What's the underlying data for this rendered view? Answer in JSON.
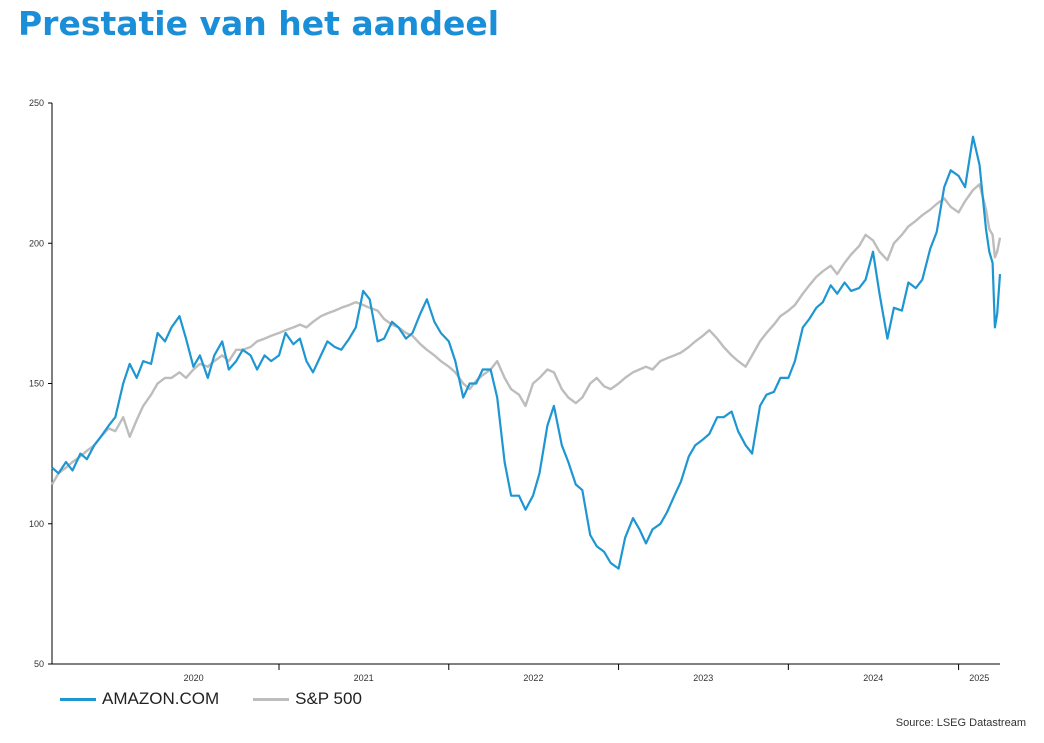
{
  "page": {
    "title": "Prestatie van het aandeel",
    "source": "Source: LSEG Datastream"
  },
  "colors": {
    "title": "#1a8fd8",
    "amazon": "#1e96d2",
    "sp500": "#bdbdbd",
    "axis": "#000000"
  },
  "chart_data": {
    "type": "line",
    "title": "Prestatie van het aandeel",
    "xlabel": "",
    "ylabel": "",
    "ylim": [
      50,
      250
    ],
    "xlim": [
      "2019-09-01",
      "2025-03-31"
    ],
    "yticks": [
      50,
      100,
      150,
      200,
      250
    ],
    "xtick_labels": [
      "2020",
      "2021",
      "2022",
      "2023",
      "2024",
      "2025"
    ],
    "grid": false,
    "legend": "bottom-left",
    "series": [
      {
        "name": "AMAZON.COM",
        "color": "#1e96d2",
        "points": [
          [
            "2019-09-01",
            120
          ],
          [
            "2019-09-15",
            118
          ],
          [
            "2019-10-01",
            122
          ],
          [
            "2019-10-15",
            119
          ],
          [
            "2019-11-01",
            125
          ],
          [
            "2019-11-15",
            123
          ],
          [
            "2019-12-01",
            128
          ],
          [
            "2019-12-15",
            131
          ],
          [
            "2020-01-01",
            135
          ],
          [
            "2020-01-15",
            138
          ],
          [
            "2020-02-01",
            150
          ],
          [
            "2020-02-15",
            157
          ],
          [
            "2020-03-01",
            152
          ],
          [
            "2020-03-15",
            158
          ],
          [
            "2020-04-01",
            157
          ],
          [
            "2020-04-15",
            168
          ],
          [
            "2020-05-01",
            165
          ],
          [
            "2020-05-15",
            170
          ],
          [
            "2020-06-01",
            174
          ],
          [
            "2020-06-15",
            166
          ],
          [
            "2020-07-01",
            156
          ],
          [
            "2020-07-15",
            160
          ],
          [
            "2020-08-01",
            152
          ],
          [
            "2020-08-15",
            160
          ],
          [
            "2020-09-01",
            165
          ],
          [
            "2020-09-15",
            155
          ],
          [
            "2020-10-01",
            158
          ],
          [
            "2020-10-15",
            162
          ],
          [
            "2020-11-01",
            160
          ],
          [
            "2020-11-15",
            155
          ],
          [
            "2020-12-01",
            160
          ],
          [
            "2020-12-15",
            158
          ],
          [
            "2021-01-01",
            160
          ],
          [
            "2021-01-15",
            168
          ],
          [
            "2021-02-01",
            164
          ],
          [
            "2021-02-15",
            166
          ],
          [
            "2021-03-01",
            158
          ],
          [
            "2021-03-15",
            154
          ],
          [
            "2021-04-01",
            160
          ],
          [
            "2021-04-15",
            165
          ],
          [
            "2021-05-01",
            163
          ],
          [
            "2021-05-15",
            162
          ],
          [
            "2021-06-01",
            166
          ],
          [
            "2021-06-15",
            170
          ],
          [
            "2021-07-01",
            183
          ],
          [
            "2021-07-15",
            180
          ],
          [
            "2021-08-01",
            165
          ],
          [
            "2021-08-15",
            166
          ],
          [
            "2021-09-01",
            172
          ],
          [
            "2021-09-15",
            170
          ],
          [
            "2021-10-01",
            166
          ],
          [
            "2021-10-15",
            168
          ],
          [
            "2021-11-01",
            175
          ],
          [
            "2021-11-15",
            180
          ],
          [
            "2021-12-01",
            172
          ],
          [
            "2021-12-15",
            168
          ],
          [
            "2022-01-01",
            165
          ],
          [
            "2022-01-15",
            158
          ],
          [
            "2022-02-01",
            145
          ],
          [
            "2022-02-15",
            150
          ],
          [
            "2022-03-01",
            150
          ],
          [
            "2022-03-15",
            155
          ],
          [
            "2022-04-01",
            155
          ],
          [
            "2022-04-15",
            145
          ],
          [
            "2022-05-01",
            122
          ],
          [
            "2022-05-15",
            110
          ],
          [
            "2022-06-01",
            110
          ],
          [
            "2022-06-15",
            105
          ],
          [
            "2022-07-01",
            110
          ],
          [
            "2022-07-15",
            118
          ],
          [
            "2022-08-01",
            135
          ],
          [
            "2022-08-15",
            142
          ],
          [
            "2022-09-01",
            128
          ],
          [
            "2022-09-15",
            122
          ],
          [
            "2022-10-01",
            114
          ],
          [
            "2022-10-15",
            112
          ],
          [
            "2022-11-01",
            96
          ],
          [
            "2022-11-15",
            92
          ],
          [
            "2022-12-01",
            90
          ],
          [
            "2022-12-15",
            86
          ],
          [
            "2023-01-01",
            84
          ],
          [
            "2023-01-15",
            95
          ],
          [
            "2023-02-01",
            102
          ],
          [
            "2023-02-15",
            98
          ],
          [
            "2023-03-01",
            93
          ],
          [
            "2023-03-15",
            98
          ],
          [
            "2023-04-01",
            100
          ],
          [
            "2023-04-15",
            104
          ],
          [
            "2023-05-01",
            110
          ],
          [
            "2023-05-15",
            115
          ],
          [
            "2023-06-01",
            124
          ],
          [
            "2023-06-15",
            128
          ],
          [
            "2023-07-01",
            130
          ],
          [
            "2023-07-15",
            132
          ],
          [
            "2023-08-01",
            138
          ],
          [
            "2023-08-15",
            138
          ],
          [
            "2023-09-01",
            140
          ],
          [
            "2023-09-15",
            133
          ],
          [
            "2023-10-01",
            128
          ],
          [
            "2023-10-15",
            125
          ],
          [
            "2023-11-01",
            142
          ],
          [
            "2023-11-15",
            146
          ],
          [
            "2023-12-01",
            147
          ],
          [
            "2023-12-15",
            152
          ],
          [
            "2024-01-01",
            152
          ],
          [
            "2024-01-15",
            158
          ],
          [
            "2024-02-01",
            170
          ],
          [
            "2024-02-15",
            173
          ],
          [
            "2024-03-01",
            177
          ],
          [
            "2024-03-15",
            179
          ],
          [
            "2024-04-01",
            185
          ],
          [
            "2024-04-15",
            182
          ],
          [
            "2024-05-01",
            186
          ],
          [
            "2024-05-15",
            183
          ],
          [
            "2024-06-01",
            184
          ],
          [
            "2024-06-15",
            187
          ],
          [
            "2024-07-01",
            197
          ],
          [
            "2024-07-15",
            182
          ],
          [
            "2024-08-01",
            166
          ],
          [
            "2024-08-15",
            177
          ],
          [
            "2024-09-01",
            176
          ],
          [
            "2024-09-15",
            186
          ],
          [
            "2024-10-01",
            184
          ],
          [
            "2024-10-15",
            187
          ],
          [
            "2024-11-01",
            198
          ],
          [
            "2024-11-15",
            204
          ],
          [
            "2024-12-01",
            220
          ],
          [
            "2024-12-15",
            226
          ],
          [
            "2025-01-01",
            224
          ],
          [
            "2025-01-15",
            220
          ],
          [
            "2025-02-01",
            238
          ],
          [
            "2025-02-15",
            228
          ],
          [
            "2025-03-01",
            205
          ],
          [
            "2025-03-08",
            197
          ],
          [
            "2025-03-15",
            193
          ],
          [
            "2025-03-20",
            170
          ],
          [
            "2025-03-25",
            175
          ],
          [
            "2025-03-31",
            189
          ]
        ]
      },
      {
        "name": "S&P 500",
        "color": "#bdbdbd",
        "points": [
          [
            "2019-09-01",
            114
          ],
          [
            "2019-09-15",
            118
          ],
          [
            "2019-10-01",
            120
          ],
          [
            "2019-10-15",
            122
          ],
          [
            "2019-11-01",
            124
          ],
          [
            "2019-11-15",
            126
          ],
          [
            "2019-12-01",
            128
          ],
          [
            "2019-12-15",
            131
          ],
          [
            "2020-01-01",
            134
          ],
          [
            "2020-01-15",
            133
          ],
          [
            "2020-02-01",
            138
          ],
          [
            "2020-02-15",
            131
          ],
          [
            "2020-03-01",
            137
          ],
          [
            "2020-03-15",
            142
          ],
          [
            "2020-04-01",
            146
          ],
          [
            "2020-04-15",
            150
          ],
          [
            "2020-05-01",
            152
          ],
          [
            "2020-05-15",
            152
          ],
          [
            "2020-06-01",
            154
          ],
          [
            "2020-06-15",
            152
          ],
          [
            "2020-07-01",
            155
          ],
          [
            "2020-07-15",
            157
          ],
          [
            "2020-08-01",
            156
          ],
          [
            "2020-08-15",
            158
          ],
          [
            "2020-09-01",
            160
          ],
          [
            "2020-09-15",
            158
          ],
          [
            "2020-10-01",
            162
          ],
          [
            "2020-10-15",
            162
          ],
          [
            "2020-11-01",
            163
          ],
          [
            "2020-11-15",
            165
          ],
          [
            "2020-12-01",
            166
          ],
          [
            "2020-12-15",
            167
          ],
          [
            "2021-01-01",
            168
          ],
          [
            "2021-01-15",
            169
          ],
          [
            "2021-02-01",
            170
          ],
          [
            "2021-02-15",
            171
          ],
          [
            "2021-03-01",
            170
          ],
          [
            "2021-03-15",
            172
          ],
          [
            "2021-04-01",
            174
          ],
          [
            "2021-04-15",
            175
          ],
          [
            "2021-05-01",
            176
          ],
          [
            "2021-05-15",
            177
          ],
          [
            "2021-06-01",
            178
          ],
          [
            "2021-06-15",
            179
          ],
          [
            "2021-07-01",
            178
          ],
          [
            "2021-07-15",
            177
          ],
          [
            "2021-08-01",
            176
          ],
          [
            "2021-08-15",
            173
          ],
          [
            "2021-09-01",
            171
          ],
          [
            "2021-09-15",
            170
          ],
          [
            "2021-10-01",
            168
          ],
          [
            "2021-10-15",
            167
          ],
          [
            "2021-11-01",
            164
          ],
          [
            "2021-11-15",
            162
          ],
          [
            "2021-12-01",
            160
          ],
          [
            "2021-12-15",
            158
          ],
          [
            "2022-01-01",
            156
          ],
          [
            "2022-01-15",
            154
          ],
          [
            "2022-02-01",
            150
          ],
          [
            "2022-02-15",
            148
          ],
          [
            "2022-03-01",
            151
          ],
          [
            "2022-03-15",
            153
          ],
          [
            "2022-04-01",
            155
          ],
          [
            "2022-04-15",
            158
          ],
          [
            "2022-05-01",
            152
          ],
          [
            "2022-05-15",
            148
          ],
          [
            "2022-06-01",
            146
          ],
          [
            "2022-06-15",
            142
          ],
          [
            "2022-07-01",
            150
          ],
          [
            "2022-07-15",
            152
          ],
          [
            "2022-08-01",
            155
          ],
          [
            "2022-08-15",
            154
          ],
          [
            "2022-09-01",
            148
          ],
          [
            "2022-09-15",
            145
          ],
          [
            "2022-10-01",
            143
          ],
          [
            "2022-10-15",
            145
          ],
          [
            "2022-11-01",
            150
          ],
          [
            "2022-11-15",
            152
          ],
          [
            "2022-12-01",
            149
          ],
          [
            "2022-12-15",
            148
          ],
          [
            "2023-01-01",
            150
          ],
          [
            "2023-01-15",
            152
          ],
          [
            "2023-02-01",
            154
          ],
          [
            "2023-02-15",
            155
          ],
          [
            "2023-03-01",
            156
          ],
          [
            "2023-03-15",
            155
          ],
          [
            "2023-04-01",
            158
          ],
          [
            "2023-04-15",
            159
          ],
          [
            "2023-05-01",
            160
          ],
          [
            "2023-05-15",
            161
          ],
          [
            "2023-06-01",
            163
          ],
          [
            "2023-06-15",
            165
          ],
          [
            "2023-07-01",
            167
          ],
          [
            "2023-07-15",
            169
          ],
          [
            "2023-08-01",
            166
          ],
          [
            "2023-08-15",
            163
          ],
          [
            "2023-09-01",
            160
          ],
          [
            "2023-09-15",
            158
          ],
          [
            "2023-10-01",
            156
          ],
          [
            "2023-10-15",
            160
          ],
          [
            "2023-11-01",
            165
          ],
          [
            "2023-11-15",
            168
          ],
          [
            "2023-12-01",
            171
          ],
          [
            "2023-12-15",
            174
          ],
          [
            "2024-01-01",
            176
          ],
          [
            "2024-01-15",
            178
          ],
          [
            "2024-02-01",
            182
          ],
          [
            "2024-02-15",
            185
          ],
          [
            "2024-03-01",
            188
          ],
          [
            "2024-03-15",
            190
          ],
          [
            "2024-04-01",
            192
          ],
          [
            "2024-04-15",
            189
          ],
          [
            "2024-05-01",
            193
          ],
          [
            "2024-05-15",
            196
          ],
          [
            "2024-06-01",
            199
          ],
          [
            "2024-06-15",
            203
          ],
          [
            "2024-07-01",
            201
          ],
          [
            "2024-07-15",
            197
          ],
          [
            "2024-08-01",
            194
          ],
          [
            "2024-08-15",
            200
          ],
          [
            "2024-09-01",
            203
          ],
          [
            "2024-09-15",
            206
          ],
          [
            "2024-10-01",
            208
          ],
          [
            "2024-10-15",
            210
          ],
          [
            "2024-11-01",
            212
          ],
          [
            "2024-11-15",
            214
          ],
          [
            "2024-12-01",
            216
          ],
          [
            "2024-12-15",
            213
          ],
          [
            "2025-01-01",
            211
          ],
          [
            "2025-01-15",
            215
          ],
          [
            "2025-02-01",
            219
          ],
          [
            "2025-02-15",
            221
          ],
          [
            "2025-03-01",
            212
          ],
          [
            "2025-03-08",
            205
          ],
          [
            "2025-03-15",
            203
          ],
          [
            "2025-03-20",
            195
          ],
          [
            "2025-03-25",
            197
          ],
          [
            "2025-03-31",
            202
          ]
        ]
      }
    ]
  }
}
